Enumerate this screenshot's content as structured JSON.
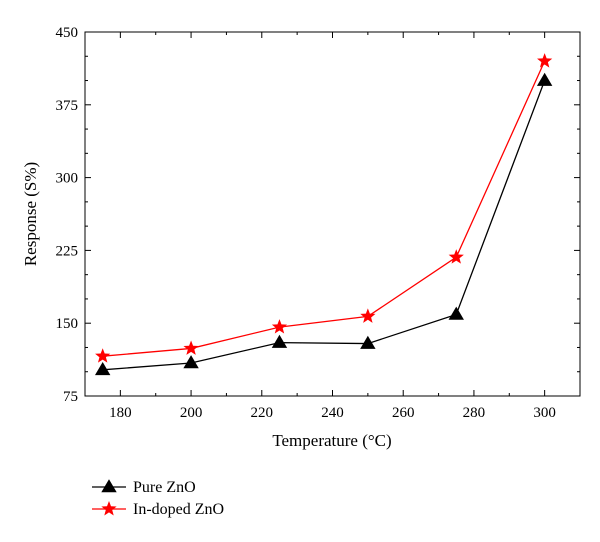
{
  "chart_data": {
    "type": "line",
    "title": "",
    "xlabel": "Temperature (°C)",
    "ylabel": "Response (S%)",
    "xlim": [
      170,
      310
    ],
    "ylim": [
      75,
      450
    ],
    "xticks": [
      180,
      200,
      220,
      240,
      260,
      280,
      300
    ],
    "yticks": [
      75,
      150,
      225,
      300,
      375,
      450
    ],
    "grid": false,
    "legend_position": "bottom-left, below plot",
    "x": [
      175,
      200,
      225,
      250,
      275,
      300
    ],
    "series": [
      {
        "name": "Pure ZnO",
        "marker": "triangle",
        "color": "#000000",
        "values": [
          102,
          109,
          130,
          129,
          159,
          400
        ]
      },
      {
        "name": "In-doped ZnO",
        "marker": "star",
        "color": "#ff0000",
        "values": [
          116,
          124,
          146,
          157,
          218,
          420
        ]
      }
    ]
  }
}
